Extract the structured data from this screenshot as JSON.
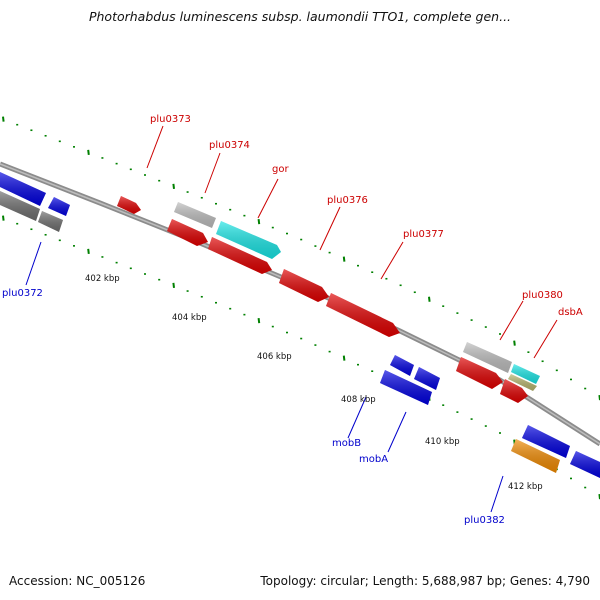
{
  "title": "Photorhabdus luminescens subsp. laumondii TTO1, complete gen...",
  "footer": {
    "accession": "Accession: NC_005126",
    "topology": "Topology: circular; Length: 5,688,987 bp; Genes: 4,790"
  },
  "colors": {
    "backbone": "#8c8c8c",
    "forward_strand": "#e00000",
    "reverse_strand": "#0000e0",
    "gray_gene": "#bdbdbd",
    "dark_gray_gene": "#6e6e6e",
    "cyan_gene": "#19e5e5",
    "olive_gene": "#b7b56e",
    "orange_gene": "#f08a00",
    "tick_color": "#008000",
    "forward_label": "#cc0000",
    "reverse_label": "#0000cc"
  },
  "scale_labels": [
    "402 kbp",
    "404 kbp",
    "406 kbp",
    "408 kbp",
    "410 kbp",
    "412 kbp"
  ],
  "gene_labels": [
    {
      "name": "plu0373",
      "strand": "forward"
    },
    {
      "name": "plu0374",
      "strand": "forward"
    },
    {
      "name": "gor",
      "strand": "forward"
    },
    {
      "name": "plu0376",
      "strand": "forward"
    },
    {
      "name": "plu0377",
      "strand": "forward"
    },
    {
      "name": "plu0380",
      "strand": "forward"
    },
    {
      "name": "dsbA",
      "strand": "forward"
    },
    {
      "name": "plu0372",
      "strand": "reverse"
    },
    {
      "name": "mobB",
      "strand": "reverse"
    },
    {
      "name": "mobA",
      "strand": "reverse"
    },
    {
      "name": "plu0382",
      "strand": "reverse"
    }
  ]
}
